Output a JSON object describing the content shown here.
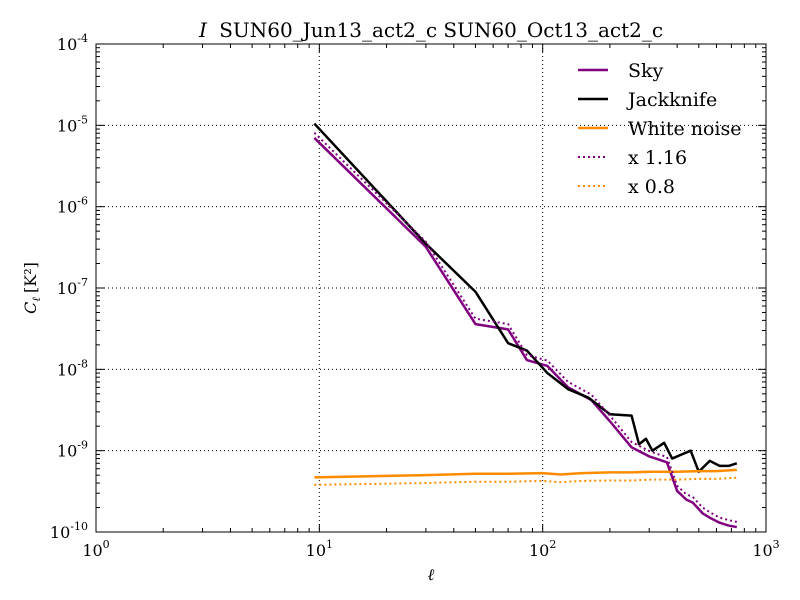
{
  "chart_data": {
    "type": "line",
    "title": "I SUN60_Jun13_act2_c SUN60_Oct13_act2_c",
    "title_prefix": "I",
    "title_rest": "SUN60_Jun13_act2_c SUN60_Oct13_act2_c",
    "xlabel": "ℓ",
    "ylabel_main": "C",
    "ylabel_sub": "ℓ",
    "ylabel_unit": "[K²]",
    "x_scale": "log",
    "y_scale": "log",
    "xlim": [
      1,
      1000
    ],
    "ylim": [
      1e-10,
      0.0001
    ],
    "grid": true,
    "legend_position": "top-right",
    "x_ticks": [
      {
        "value": 1,
        "base": "10",
        "exp": "0"
      },
      {
        "value": 10,
        "base": "10",
        "exp": "1"
      },
      {
        "value": 100,
        "base": "10",
        "exp": "2"
      },
      {
        "value": 1000,
        "base": "10",
        "exp": "3"
      }
    ],
    "y_ticks": [
      {
        "value": 1e-10,
        "base": "10",
        "exp": "-10"
      },
      {
        "value": 1e-09,
        "base": "10",
        "exp": "-9"
      },
      {
        "value": 1e-08,
        "base": "10",
        "exp": "-8"
      },
      {
        "value": 1e-07,
        "base": "10",
        "exp": "-7"
      },
      {
        "value": 1e-06,
        "base": "10",
        "exp": "-6"
      },
      {
        "value": 1e-05,
        "base": "10",
        "exp": "-5"
      },
      {
        "value": 0.0001,
        "base": "10",
        "exp": "-4"
      }
    ],
    "series": [
      {
        "name": "Sky",
        "color": "#800080",
        "style": "solid",
        "x": [
          9.5,
          30,
          50,
          70,
          85,
          105,
          130,
          165,
          200,
          250,
          300,
          330,
          360,
          400,
          440,
          470,
          520,
          560,
          620,
          680,
          740
        ],
        "y": [
          7e-06,
          3.2e-07,
          3.6e-08,
          3.1e-08,
          1.3e-08,
          1.1e-08,
          6e-09,
          4.2e-09,
          2.3e-09,
          1.1e-09,
          8.5e-10,
          7.8e-10,
          7.2e-10,
          3.2e-10,
          2.5e-10,
          2.3e-10,
          1.7e-10,
          1.5e-10,
          1.3e-10,
          1.2e-10,
          1.15e-10
        ]
      },
      {
        "name": "Jackknife",
        "color": "#000000",
        "style": "solid",
        "x": [
          9.5,
          30,
          50,
          70,
          85,
          105,
          130,
          160,
          200,
          250,
          270,
          290,
          310,
          350,
          380,
          420,
          460,
          500,
          560,
          620,
          680,
          740
        ],
        "y": [
          1.05e-05,
          3.5e-07,
          9e-08,
          2.1e-08,
          1.7e-08,
          9e-09,
          5.7e-09,
          4.5e-09,
          2.8e-09,
          2.7e-09,
          1.2e-09,
          1.4e-09,
          1e-09,
          1.25e-09,
          8e-10,
          9e-10,
          1e-09,
          5.5e-10,
          7.5e-10,
          6.5e-10,
          6.5e-10,
          7e-10
        ]
      },
      {
        "name": "White noise",
        "color": "#FF8C00",
        "style": "solid",
        "x": [
          9.5,
          30,
          50,
          70,
          100,
          120,
          150,
          200,
          250,
          300,
          400,
          500,
          600,
          740
        ],
        "y": [
          4.7e-10,
          5e-10,
          5.2e-10,
          5.2e-10,
          5.3e-10,
          5.1e-10,
          5.3e-10,
          5.4e-10,
          5.4e-10,
          5.5e-10,
          5.5e-10,
          5.6e-10,
          5.6e-10,
          5.8e-10
        ]
      },
      {
        "name": "x 1.16",
        "color": "#800080",
        "style": "dotted",
        "x": [
          9.5,
          30,
          50,
          70,
          85,
          105,
          130,
          165,
          200,
          250,
          300,
          330,
          360,
          400,
          440,
          470,
          520,
          560,
          620,
          680,
          740
        ],
        "y": [
          8.1e-06,
          3.7e-07,
          4.2e-08,
          3.6e-08,
          1.5e-08,
          1.28e-08,
          7e-09,
          4.9e-09,
          2.7e-09,
          1.28e-09,
          9.9e-10,
          9e-10,
          8.4e-10,
          3.7e-10,
          2.9e-10,
          2.7e-10,
          2e-10,
          1.75e-10,
          1.5e-10,
          1.4e-10,
          1.33e-10
        ]
      },
      {
        "name": "x 0.8",
        "color": "#FF8C00",
        "style": "dotted",
        "x": [
          9.5,
          30,
          50,
          70,
          100,
          120,
          150,
          200,
          250,
          300,
          400,
          500,
          600,
          740
        ],
        "y": [
          3.8e-10,
          4e-10,
          4.15e-10,
          4.15e-10,
          4.25e-10,
          4.1e-10,
          4.25e-10,
          4.3e-10,
          4.3e-10,
          4.4e-10,
          4.4e-10,
          4.5e-10,
          4.5e-10,
          4.65e-10
        ]
      }
    ]
  }
}
